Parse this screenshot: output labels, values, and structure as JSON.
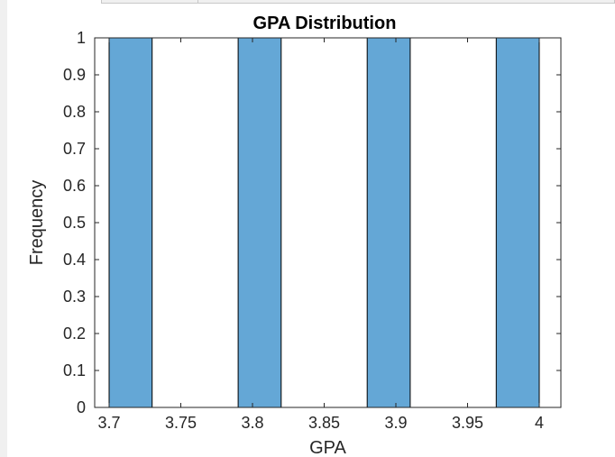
{
  "chart_data": {
    "type": "bar",
    "title": "GPA Distribution",
    "xlabel": "GPA",
    "ylabel": "Frequency",
    "xlim": [
      3.7,
      4.0
    ],
    "ylim": [
      0,
      1
    ],
    "bin_width": 0.03,
    "bins": [
      {
        "start": 3.7,
        "end": 3.73,
        "value": 1
      },
      {
        "start": 3.79,
        "end": 3.82,
        "value": 1
      },
      {
        "start": 3.88,
        "end": 3.91,
        "value": 1
      },
      {
        "start": 3.97,
        "end": 4.0,
        "value": 1
      }
    ],
    "x_ticks": [
      {
        "value": 3.7,
        "label": "3.7"
      },
      {
        "value": 3.75,
        "label": "3.75"
      },
      {
        "value": 3.8,
        "label": "3.8"
      },
      {
        "value": 3.85,
        "label": "3.85"
      },
      {
        "value": 3.9,
        "label": "3.9"
      },
      {
        "value": 3.95,
        "label": "3.95"
      },
      {
        "value": 4.0,
        "label": "4"
      }
    ],
    "y_ticks": [
      {
        "value": 0,
        "label": "0"
      },
      {
        "value": 0.1,
        "label": "0.1"
      },
      {
        "value": 0.2,
        "label": "0.2"
      },
      {
        "value": 0.3,
        "label": "0.3"
      },
      {
        "value": 0.4,
        "label": "0.4"
      },
      {
        "value": 0.5,
        "label": "0.5"
      },
      {
        "value": 0.6,
        "label": "0.6"
      },
      {
        "value": 0.7,
        "label": "0.7"
      },
      {
        "value": 0.8,
        "label": "0.8"
      },
      {
        "value": 0.9,
        "label": "0.9"
      },
      {
        "value": 1,
        "label": "1"
      }
    ],
    "grid": false,
    "legend": "none",
    "bar_color": "#64a7d6",
    "bar_edge_color": "#000000",
    "axis_color": "#262626"
  }
}
